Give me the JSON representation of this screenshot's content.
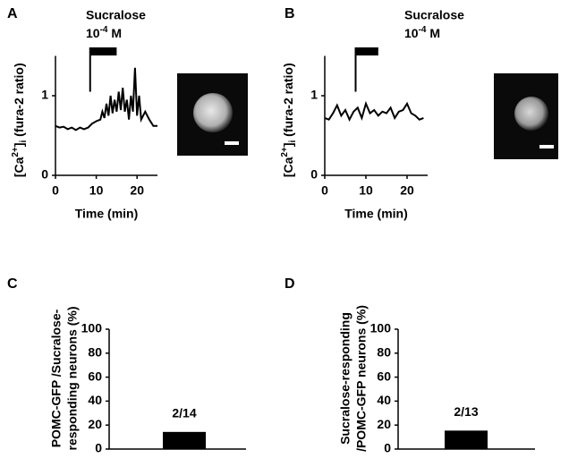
{
  "chart_data": [
    {
      "type": "line",
      "panel": "A",
      "stimulus_label": "Sucralose",
      "concentration": [
        "10",
        "-4",
        " M"
      ],
      "stimulus": [
        8.5,
        15
      ],
      "x_label": "Time (min)",
      "y_label": [
        "[Ca",
        "2+",
        "]",
        "i",
        " (fura-2 ratio)"
      ],
      "x": [
        0,
        1,
        2,
        3,
        4,
        5,
        6,
        7,
        8,
        9,
        10,
        11,
        11.5,
        12,
        12.5,
        13,
        13.5,
        14,
        14.5,
        15,
        15.5,
        16,
        16.5,
        17,
        17.5,
        18,
        18.5,
        19,
        19.5,
        20,
        20.5,
        21,
        22,
        23,
        24,
        25
      ],
      "values": [
        0.62,
        0.6,
        0.61,
        0.58,
        0.6,
        0.57,
        0.6,
        0.58,
        0.6,
        0.65,
        0.68,
        0.7,
        0.8,
        0.72,
        0.9,
        0.75,
        1.0,
        0.78,
        0.95,
        0.8,
        1.05,
        0.82,
        1.1,
        0.8,
        0.95,
        0.7,
        1.0,
        0.8,
        1.35,
        0.75,
        1.0,
        0.7,
        0.8,
        0.7,
        0.62,
        0.62
      ],
      "color": "#000000",
      "xlim": [
        0,
        25
      ],
      "xticks": [
        0,
        10,
        20
      ],
      "ylim": [
        0,
        1.5
      ],
      "yticks": [
        0,
        1
      ]
    },
    {
      "type": "line",
      "panel": "B",
      "stimulus_label": "Sucralose",
      "concentration": [
        "10",
        "-4",
        " M"
      ],
      "stimulus": [
        7.5,
        13
      ],
      "x_label": "Time (min)",
      "y_label": [
        "[Ca",
        "2+",
        "]",
        "i",
        " (fura-2 ratio)"
      ],
      "x": [
        0,
        1,
        2,
        3,
        4,
        5,
        6,
        7,
        8,
        9,
        10,
        11,
        12,
        13,
        14,
        15,
        16,
        17,
        18,
        19,
        20,
        21,
        22,
        23,
        24
      ],
      "values": [
        0.72,
        0.7,
        0.78,
        0.88,
        0.75,
        0.82,
        0.7,
        0.8,
        0.85,
        0.72,
        0.9,
        0.78,
        0.82,
        0.75,
        0.8,
        0.78,
        0.85,
        0.72,
        0.8,
        0.82,
        0.9,
        0.78,
        0.75,
        0.7,
        0.72
      ],
      "color": "#000000",
      "xlim": [
        0,
        25
      ],
      "xticks": [
        0,
        10,
        20
      ],
      "ylim": [
        0,
        1.5
      ],
      "yticks": [
        0,
        1
      ]
    },
    {
      "type": "bar",
      "panel": "C",
      "y_label": [
        "POMC-GFP /Sucralose-",
        "responding neurons (%)"
      ],
      "categories": [
        null
      ],
      "values": [
        14.3
      ],
      "annotation": "2/14",
      "color": "#000000",
      "ylim": [
        0,
        100
      ],
      "yticks": [
        0,
        20,
        40,
        60,
        80,
        100
      ]
    },
    {
      "type": "bar",
      "panel": "D",
      "y_label": [
        "Sucralose-responding",
        "/POMC-GFP neurons (%)"
      ],
      "categories": [
        null
      ],
      "values": [
        15.4
      ],
      "annotation": "2/13",
      "color": "#000000",
      "ylim": [
        0,
        100
      ],
      "yticks": [
        0,
        20,
        40,
        60,
        80,
        100
      ]
    }
  ]
}
